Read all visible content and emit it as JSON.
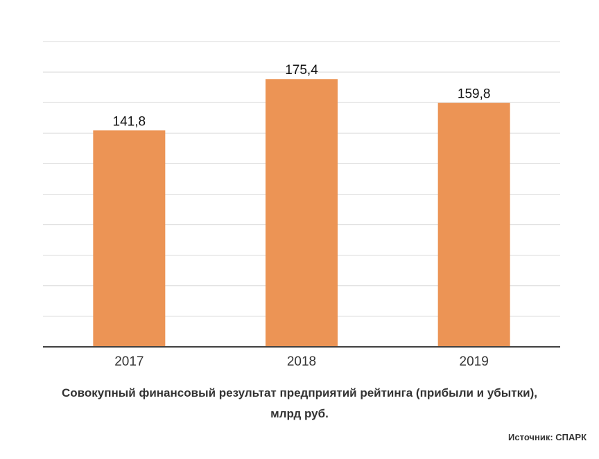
{
  "chart_data": {
    "type": "bar",
    "categories": [
      "2017",
      "2018",
      "2019"
    ],
    "values": [
      141.8,
      175.4,
      159.8
    ],
    "value_labels": [
      "141,8",
      "175,4",
      "159,8"
    ],
    "ylim": [
      0,
      200
    ],
    "grid": true,
    "bar_color": "#EC9455",
    "title": "Совокупный финансовый результат предприятий рейтинга (прибыли и убытки), млрд руб."
  },
  "caption": {
    "line1": "Совокупный финансовый результат предприятий рейтинга (прибыли и убытки),",
    "line2": "млрд руб."
  },
  "source": "Источник: СПАРК"
}
